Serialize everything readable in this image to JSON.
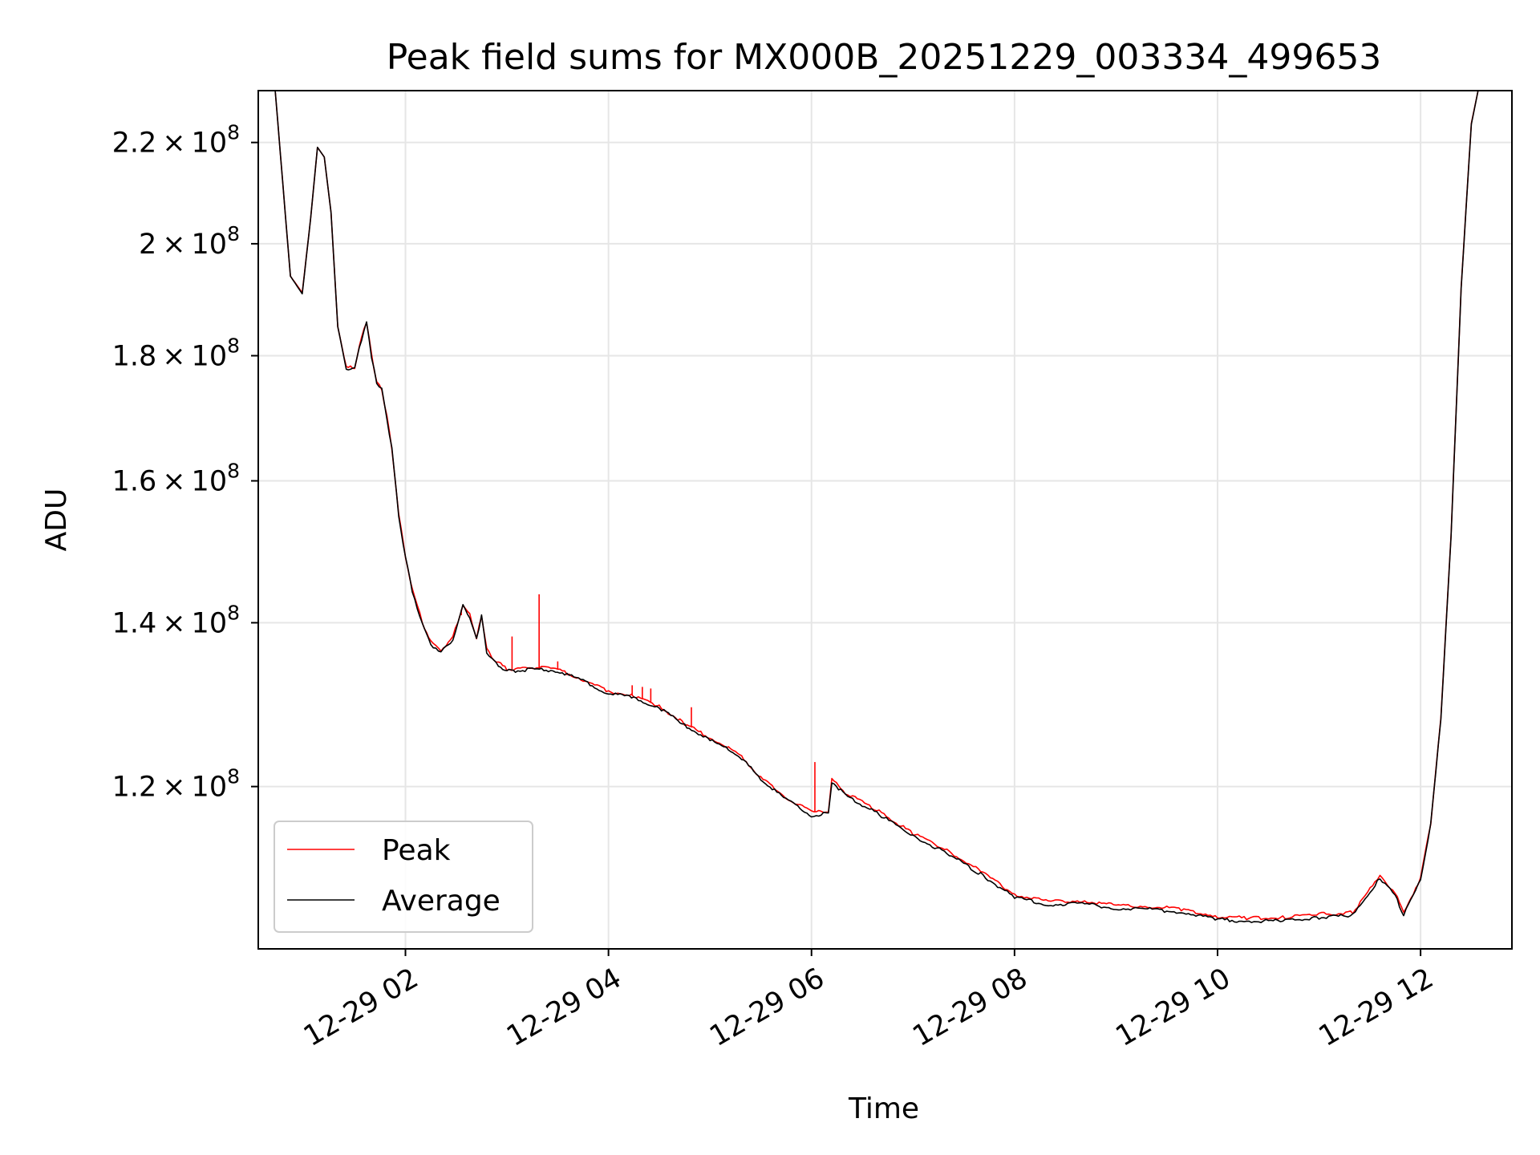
{
  "chart_data": {
    "type": "line",
    "title": "Peak field sums for MX000B_20251229_003334_499653",
    "xlabel": "Time",
    "ylabel": "ADU",
    "x_range": [
      "2025-12-29 00:33",
      "2025-12-29 12:54"
    ],
    "ylim": [
      103000000,
      231000000
    ],
    "y_scale": "log",
    "grid": true,
    "legend_position": "lower-left",
    "x_ticks": [
      {
        "t": "2025-12-29 02:00",
        "label": "12-29 02"
      },
      {
        "t": "2025-12-29 04:00",
        "label": "12-29 04"
      },
      {
        "t": "2025-12-29 06:00",
        "label": "12-29 06"
      },
      {
        "t": "2025-12-29 08:00",
        "label": "12-29 08"
      },
      {
        "t": "2025-12-29 10:00",
        "label": "12-29 10"
      },
      {
        "t": "2025-12-29 12:00",
        "label": "12-29 12"
      }
    ],
    "y_ticks": [
      {
        "value": 120000000,
        "mantissa": "1.2",
        "exponent": "8"
      },
      {
        "value": 140000000,
        "mantissa": "1.4",
        "exponent": "8"
      },
      {
        "value": 160000000,
        "mantissa": "1.6",
        "exponent": "8"
      },
      {
        "value": 180000000,
        "mantissa": "1.8",
        "exponent": "8"
      },
      {
        "value": 200000000,
        "mantissa": "2",
        "exponent": "8"
      },
      {
        "value": 220000000,
        "mantissa": "2.2",
        "exponent": "8"
      }
    ],
    "series": [
      {
        "name": "Peak",
        "color": "#ff0000",
        "x": [
          "2025-12-29 00:33",
          "2025-12-29 00:43",
          "2025-12-29 00:52",
          "2025-12-29 00:59",
          "2025-12-29 01:04",
          "2025-12-29 01:08",
          "2025-12-29 01:12",
          "2025-12-29 01:16",
          "2025-12-29 01:20",
          "2025-12-29 01:25",
          "2025-12-29 01:30",
          "2025-12-29 01:34",
          "2025-12-29 01:37",
          "2025-12-29 01:40",
          "2025-12-29 01:43",
          "2025-12-29 01:46",
          "2025-12-29 01:49",
          "2025-12-29 01:52",
          "2025-12-29 01:56",
          "2025-12-29 02:00",
          "2025-12-29 02:04",
          "2025-12-29 02:10",
          "2025-12-29 02:15",
          "2025-12-29 02:21",
          "2025-12-29 02:28",
          "2025-12-29 02:34",
          "2025-12-29 02:38",
          "2025-12-29 02:42",
          "2025-12-29 02:45",
          "2025-12-29 02:48",
          "2025-12-29 02:51",
          "2025-12-29 02:55",
          "2025-12-29 03:00",
          "2025-12-29 03:05",
          "2025-12-29 03:15",
          "2025-12-29 03:30",
          "2025-12-29 03:45",
          "2025-12-29 04:00",
          "2025-12-29 04:15",
          "2025-12-29 04:30",
          "2025-12-29 04:45",
          "2025-12-29 05:00",
          "2025-12-29 05:15",
          "2025-12-29 05:20",
          "2025-12-29 05:30",
          "2025-12-29 05:45",
          "2025-12-29 06:00",
          "2025-12-29 06:10",
          "2025-12-29 06:12",
          "2025-12-29 06:20",
          "2025-12-29 06:40",
          "2025-12-29 07:00",
          "2025-12-29 07:20",
          "2025-12-29 07:40",
          "2025-12-29 08:00",
          "2025-12-29 08:20",
          "2025-12-29 08:40",
          "2025-12-29 09:00",
          "2025-12-29 09:20",
          "2025-12-29 09:40",
          "2025-12-29 10:00",
          "2025-12-29 10:20",
          "2025-12-29 10:40",
          "2025-12-29 11:00",
          "2025-12-29 11:20",
          "2025-12-29 11:36",
          "2025-12-29 11:45",
          "2025-12-29 11:50",
          "2025-12-29 12:00",
          "2025-12-29 12:06",
          "2025-12-29 12:12",
          "2025-12-29 12:18",
          "2025-12-29 12:24",
          "2025-12-29 12:30",
          "2025-12-29 12:34",
          "2025-12-29 12:38"
        ],
        "y": [
          231000000,
          231000000,
          194000000,
          191000000,
          205000000,
          219000000,
          217000000,
          206000000,
          185000000,
          178000000,
          178000000,
          183000000,
          186000000,
          180000000,
          175500000,
          174500000,
          170000000,
          165000000,
          155000000,
          149000000,
          144500000,
          140000000,
          137500000,
          136500000,
          138000000,
          142500000,
          141000000,
          138000000,
          141000000,
          136500000,
          135500000,
          134800000,
          134000000,
          134000000,
          134300000,
          134000000,
          132700000,
          131200000,
          130700000,
          129400000,
          127300000,
          125600000,
          124000000,
          123200000,
          121000000,
          118800000,
          117100000,
          117300000,
          120800000,
          119300000,
          117200000,
          114800000,
          113000000,
          110800000,
          108400000,
          107700000,
          107800000,
          107300000,
          107200000,
          106900000,
          106200000,
          106000000,
          106100000,
          106400000,
          106600000,
          110300000,
          108600000,
          106600000,
          110100000,
          116000000,
          128000000,
          152000000,
          192000000,
          224000000,
          231000000,
          231000000
        ]
      },
      {
        "name": "Average",
        "color": "#000000",
        "x": [
          "2025-12-29 00:33",
          "2025-12-29 00:43",
          "2025-12-29 00:52",
          "2025-12-29 00:59",
          "2025-12-29 01:04",
          "2025-12-29 01:08",
          "2025-12-29 01:12",
          "2025-12-29 01:16",
          "2025-12-29 01:20",
          "2025-12-29 01:25",
          "2025-12-29 01:30",
          "2025-12-29 01:34",
          "2025-12-29 01:37",
          "2025-12-29 01:40",
          "2025-12-29 01:43",
          "2025-12-29 01:46",
          "2025-12-29 01:49",
          "2025-12-29 01:52",
          "2025-12-29 01:56",
          "2025-12-29 02:00",
          "2025-12-29 02:04",
          "2025-12-29 02:10",
          "2025-12-29 02:15",
          "2025-12-29 02:21",
          "2025-12-29 02:28",
          "2025-12-29 02:34",
          "2025-12-29 02:38",
          "2025-12-29 02:42",
          "2025-12-29 02:45",
          "2025-12-29 02:48",
          "2025-12-29 02:51",
          "2025-12-29 02:55",
          "2025-12-29 03:00",
          "2025-12-29 03:05",
          "2025-12-29 03:15",
          "2025-12-29 03:30",
          "2025-12-29 03:45",
          "2025-12-29 04:00",
          "2025-12-29 04:15",
          "2025-12-29 04:30",
          "2025-12-29 04:45",
          "2025-12-29 05:00",
          "2025-12-29 05:15",
          "2025-12-29 05:20",
          "2025-12-29 05:30",
          "2025-12-29 05:45",
          "2025-12-29 06:00",
          "2025-12-29 06:10",
          "2025-12-29 06:12",
          "2025-12-29 06:20",
          "2025-12-29 06:40",
          "2025-12-29 07:00",
          "2025-12-29 07:20",
          "2025-12-29 07:40",
          "2025-12-29 08:00",
          "2025-12-29 08:20",
          "2025-12-29 08:40",
          "2025-12-29 09:00",
          "2025-12-29 09:20",
          "2025-12-29 09:40",
          "2025-12-29 10:00",
          "2025-12-29 10:20",
          "2025-12-29 10:40",
          "2025-12-29 11:00",
          "2025-12-29 11:20",
          "2025-12-29 11:36",
          "2025-12-29 11:45",
          "2025-12-29 11:50",
          "2025-12-29 12:00",
          "2025-12-29 12:06",
          "2025-12-29 12:12",
          "2025-12-29 12:18",
          "2025-12-29 12:24",
          "2025-12-29 12:30",
          "2025-12-29 12:34",
          "2025-12-29 12:38"
        ],
        "y": [
          231000000,
          231000000,
          194000000,
          190800000,
          205000000,
          219000000,
          217000000,
          206000000,
          185000000,
          177800000,
          177700000,
          182800000,
          185800000,
          179800000,
          175300000,
          174300000,
          169800000,
          164800000,
          154800000,
          148800000,
          144300000,
          139800000,
          137200000,
          136200000,
          137800000,
          142300000,
          140800000,
          137800000,
          140800000,
          136200000,
          135200000,
          134500000,
          133800000,
          133800000,
          134000000,
          133800000,
          132500000,
          131000000,
          130500000,
          129200000,
          127100000,
          125400000,
          123800000,
          123000000,
          120800000,
          118500000,
          116800000,
          117000000,
          120600000,
          119000000,
          116900000,
          114500000,
          112700000,
          110500000,
          108100000,
          107400000,
          107500000,
          107000000,
          106900000,
          106600000,
          105900000,
          105700000,
          105800000,
          106100000,
          106300000,
          110100000,
          108300000,
          106300000,
          109900000,
          115800000,
          127800000,
          151800000,
          191800000,
          223800000,
          231000000,
          231000000
        ]
      }
    ],
    "spikes": [
      {
        "t": "2025-12-29 02:33",
        "peak": 141000000
      },
      {
        "t": "2025-12-29 03:03",
        "peak": 138200000
      },
      {
        "t": "2025-12-29 03:19",
        "peak": 143800000
      },
      {
        "t": "2025-12-29 03:30",
        "peak": 135000000
      },
      {
        "t": "2025-12-29 04:14",
        "peak": 132000000
      },
      {
        "t": "2025-12-29 04:20",
        "peak": 131800000
      },
      {
        "t": "2025-12-29 04:25",
        "peak": 131600000
      },
      {
        "t": "2025-12-29 04:49",
        "peak": 129300000
      },
      {
        "t": "2025-12-29 06:02",
        "peak": 122800000
      }
    ]
  }
}
